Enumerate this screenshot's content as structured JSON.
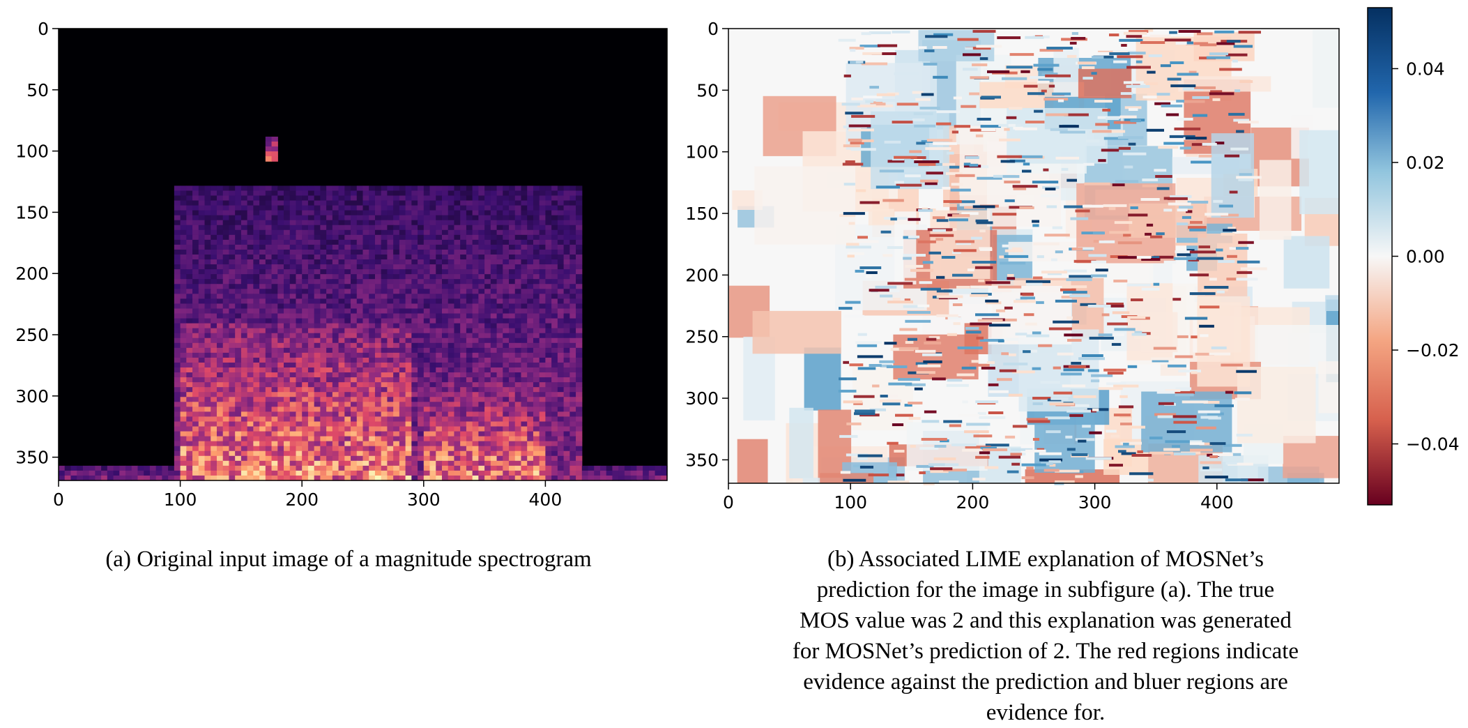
{
  "chart_data": [
    {
      "type": "heatmap",
      "subtitle": "(a) Original input image of a magnitude spectrogram",
      "colormap": "magma",
      "x_ticks": [
        0,
        100,
        200,
        300,
        400
      ],
      "y_ticks": [
        0,
        50,
        100,
        150,
        200,
        250,
        300,
        350
      ],
      "xlim": [
        0,
        500
      ],
      "ylim": [
        369,
        0
      ],
      "grid": false,
      "energy_regions": [
        {
          "x_range": [
            95,
            430
          ],
          "y_range": [
            130,
            369
          ],
          "level": "medium"
        },
        {
          "x_range": [
            100,
            290
          ],
          "y_range": [
            240,
            369
          ],
          "level": "high"
        },
        {
          "x_range": [
            300,
            400
          ],
          "y_range": [
            290,
            369
          ],
          "level": "high"
        },
        {
          "x_range": [
            170,
            180
          ],
          "y_range": [
            90,
            110
          ],
          "level": "high"
        },
        {
          "x_range": [
            0,
            500
          ],
          "y_range": [
            355,
            369
          ],
          "level": "medium"
        }
      ]
    },
    {
      "type": "heatmap",
      "subtitle": "(b) Associated LIME explanation of MOSNet’s prediction for the image in subfigure (a). The true MOS value was 2 and this explanation was generated for MOSNet’s prediction of 2. The red regions indicate evidence against the prediction and bluer regions are evidence for.",
      "colormap": "RdBu",
      "x_ticks": [
        0,
        100,
        200,
        300,
        400
      ],
      "y_ticks": [
        0,
        50,
        100,
        150,
        200,
        250,
        300,
        350
      ],
      "xlim": [
        0,
        500
      ],
      "ylim": [
        369,
        0
      ],
      "colorbar_ticks": [
        "0.04",
        "0.02",
        "0.00",
        "−0.02",
        "−0.04"
      ],
      "colorbar_range": [
        -0.053,
        0.053
      ],
      "grid": false
    }
  ],
  "captions": {
    "a": [
      "(a) Original input image of a magnitude spectrogram"
    ],
    "b": [
      "(b) Associated LIME explanation of MOSNet’s",
      "prediction for the image in subfigure (a). The true",
      "MOS value was 2 and this explanation was generated",
      "for MOSNet’s prediction of 2. The red regions indicate",
      "evidence against the prediction and bluer regions are",
      "evidence for."
    ]
  },
  "colors": {
    "magma": [
      "#000004",
      "#3b0f70",
      "#8c2981",
      "#de4968",
      "#fe9f6d",
      "#fcfdbf"
    ],
    "rdbu": [
      "#67001f",
      "#d6604d",
      "#fddbc7",
      "#f7f7f7",
      "#d1e5f0",
      "#4393c3",
      "#053061"
    ]
  }
}
